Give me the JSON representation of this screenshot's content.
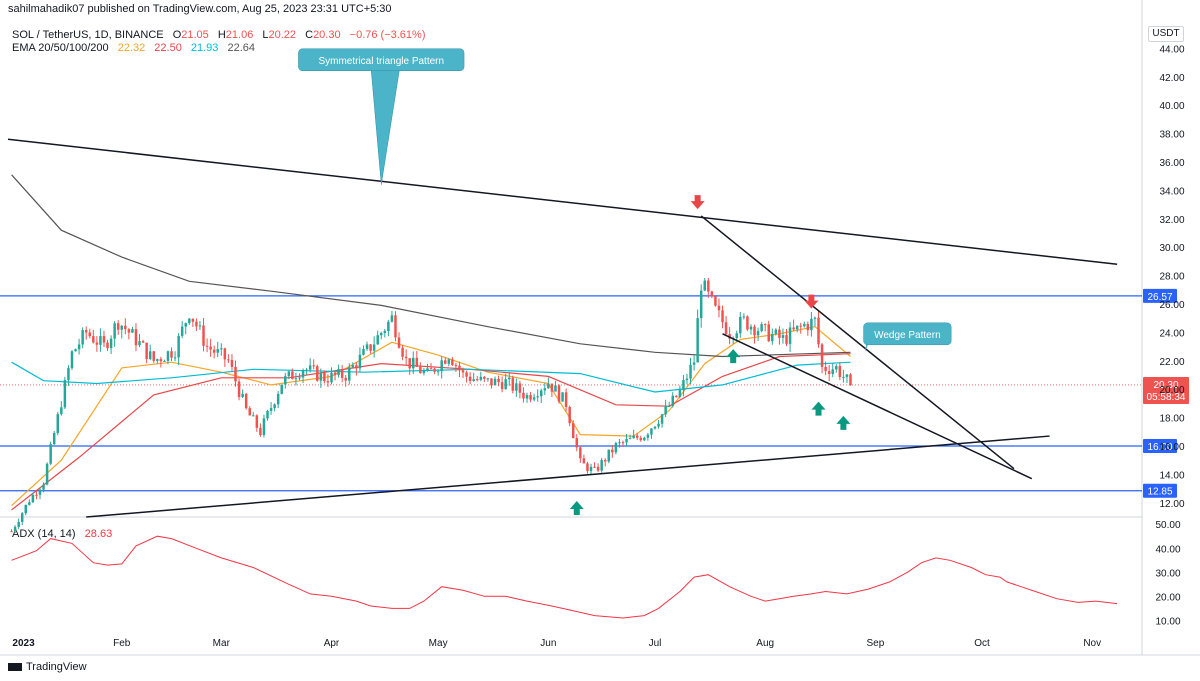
{
  "header": {
    "published": "sahilmahadik07 published on TradingView.com, Aug 25, 2023 23:31 UTC+5:30",
    "symbol": "SOL / TetherUS, 1D, BINANCE",
    "open_label": "O",
    "open": "21.05",
    "high_label": "H",
    "high": "21.06",
    "low_label": "L",
    "low": "20.22",
    "close_label": "C",
    "close": "20.30",
    "change": "−0.76 (−3.61%)",
    "ema_label": "EMA 20/50/100/200",
    "ema20": "22.32",
    "ema50": "22.50",
    "ema100": "21.93",
    "ema200": "22.64",
    "adx_label": "ADX (14, 14)",
    "adx_value": "28.63",
    "currency": "USDT"
  },
  "footer": {
    "brand": "TradingView"
  },
  "colors": {
    "up": "#26a69a",
    "down": "#ef5350",
    "ema20": "#f7a525",
    "ema50": "#e8474a",
    "ema100": "#00bcd4",
    "ema200": "#555555",
    "level": "#2962ff",
    "annotation": "#4bb4c9",
    "arrow_up": "#089981",
    "arrow_down": "#e8474a",
    "adx": "#f23645"
  },
  "chart_data": [
    {
      "type": "candlestick",
      "title": "SOL / TetherUS, 1D, BINANCE",
      "xlabel": "",
      "ylabel": "",
      "ylim": [
        11,
        46
      ],
      "y_ticks": [
        "12.00",
        "14.00",
        "16.00",
        "18.00",
        "20.00",
        "22.00",
        "24.00",
        "26.00",
        "28.00",
        "30.00",
        "32.00",
        "34.00",
        "36.00",
        "38.00",
        "40.00",
        "42.00",
        "44.00"
      ],
      "x_ticks": [
        "2023",
        "Feb",
        "Mar",
        "Apr",
        "May",
        "Jun",
        "Jul",
        "Aug",
        "Sep",
        "Oct",
        "Nov"
      ],
      "x_start": "2022-12-31",
      "x_end": "2023-11-15",
      "horizontal_levels": [
        {
          "value": 26.57,
          "label": "26.57"
        },
        {
          "value": 16.0,
          "label": "16.00"
        },
        {
          "value": 12.85,
          "label": "12.85"
        }
      ],
      "last_price": {
        "value": 20.3,
        "label": "20.30",
        "countdown": "05:58:34"
      },
      "series": [
        {
          "name": "EMA 20",
          "key": "ema20",
          "points": [
            [
              "2023-01-01",
              11.8
            ],
            [
              "2023-01-15",
              15.0
            ],
            [
              "2023-02-01",
              21.5
            ],
            [
              "2023-02-15",
              21.9
            ],
            [
              "2023-03-01",
              21.2
            ],
            [
              "2023-03-15",
              20.3
            ],
            [
              "2023-04-01",
              20.9
            ],
            [
              "2023-04-18",
              23.3
            ],
            [
              "2023-05-01",
              22.4
            ],
            [
              "2023-05-15",
              21.2
            ],
            [
              "2023-06-01",
              20.4
            ],
            [
              "2023-06-10",
              16.8
            ],
            [
              "2023-06-25",
              16.7
            ],
            [
              "2023-07-05",
              18.5
            ],
            [
              "2023-07-15",
              21.8
            ],
            [
              "2023-07-25",
              23.5
            ],
            [
              "2023-08-05",
              23.9
            ],
            [
              "2023-08-15",
              24.4
            ],
            [
              "2023-08-25",
              22.3
            ]
          ]
        },
        {
          "name": "EMA 50",
          "key": "ema50",
          "points": [
            [
              "2023-01-01",
              11.5
            ],
            [
              "2023-01-20",
              15.2
            ],
            [
              "2023-02-10",
              19.6
            ],
            [
              "2023-03-01",
              20.8
            ],
            [
              "2023-03-20",
              20.8
            ],
            [
              "2023-04-15",
              21.8
            ],
            [
              "2023-05-10",
              21.4
            ],
            [
              "2023-06-01",
              20.9
            ],
            [
              "2023-06-20",
              18.9
            ],
            [
              "2023-07-05",
              18.8
            ],
            [
              "2023-07-20",
              20.9
            ],
            [
              "2023-08-05",
              22.3
            ],
            [
              "2023-08-25",
              22.5
            ]
          ]
        },
        {
          "name": "EMA 100",
          "key": "ema100",
          "points": [
            [
              "2023-01-01",
              21.9
            ],
            [
              "2023-01-10",
              20.6
            ],
            [
              "2023-01-25",
              20.4
            ],
            [
              "2023-02-15",
              20.8
            ],
            [
              "2023-03-10",
              21.4
            ],
            [
              "2023-04-10",
              21.2
            ],
            [
              "2023-05-10",
              21.4
            ],
            [
              "2023-06-10",
              21.1
            ],
            [
              "2023-07-01",
              19.8
            ],
            [
              "2023-07-20",
              20.3
            ],
            [
              "2023-08-10",
              21.7
            ],
            [
              "2023-08-25",
              21.9
            ]
          ]
        },
        {
          "name": "EMA 200",
          "key": "ema200",
          "points": [
            [
              "2023-01-01",
              35.1
            ],
            [
              "2023-01-15",
              31.2
            ],
            [
              "2023-02-01",
              29.3
            ],
            [
              "2023-02-20",
              27.6
            ],
            [
              "2023-03-15",
              26.9
            ],
            [
              "2023-04-15",
              25.9
            ],
            [
              "2023-05-15",
              24.4
            ],
            [
              "2023-06-10",
              23.2
            ],
            [
              "2023-07-01",
              22.6
            ],
            [
              "2023-07-20",
              22.3
            ],
            [
              "2023-08-25",
              22.6
            ]
          ]
        }
      ],
      "trendlines": [
        {
          "from": [
            "2022-12-31",
            37.6
          ],
          "to": [
            "2023-11-08",
            28.8
          ]
        },
        {
          "from": [
            "2023-01-22",
            11.0
          ],
          "to": [
            "2023-10-20",
            16.7
          ]
        },
        {
          "from": [
            "2023-07-14",
            32.2
          ],
          "to": [
            "2023-10-10",
            14.4
          ]
        },
        {
          "from": [
            "2023-07-20",
            23.9
          ],
          "to": [
            "2023-10-15",
            13.7
          ]
        }
      ],
      "annotations": [
        {
          "text": "Symmetrical triangle Pattern",
          "box_at": [
            "2023-04-15",
            43.2
          ],
          "pointer_to": [
            "2023-04-15",
            34.4
          ]
        },
        {
          "text": "Wedge Pattern",
          "box_at": [
            "2023-09-10",
            23.9
          ],
          "pointer_to": [
            "2023-08-29",
            22.6
          ]
        }
      ],
      "markers": [
        {
          "kind": "down",
          "at": [
            "2023-07-13",
            33.1
          ]
        },
        {
          "kind": "down",
          "at": [
            "2023-08-14",
            26.1
          ]
        },
        {
          "kind": "up",
          "at": [
            "2023-06-09",
            11.7
          ]
        },
        {
          "kind": "up",
          "at": [
            "2023-07-23",
            22.4
          ]
        },
        {
          "kind": "up",
          "at": [
            "2023-08-16",
            18.7
          ]
        },
        {
          "kind": "up",
          "at": [
            "2023-08-23",
            17.7
          ]
        }
      ],
      "price_path": [
        [
          "2023-01-01",
          10.0
        ],
        [
          "2023-01-06",
          12.2
        ],
        [
          "2023-01-10",
          13.5
        ],
        [
          "2023-01-14",
          18.0
        ],
        [
          "2023-01-18",
          22.5
        ],
        [
          "2023-01-22",
          24.0
        ],
        [
          "2023-01-27",
          23.0
        ],
        [
          "2023-01-31",
          24.8
        ],
        [
          "2023-02-05",
          23.5
        ],
        [
          "2023-02-10",
          22.0
        ],
        [
          "2023-02-16",
          22.8
        ],
        [
          "2023-02-20",
          25.5
        ],
        [
          "2023-02-25",
          23.0
        ],
        [
          "2023-03-03",
          22.0
        ],
        [
          "2023-03-08",
          18.5
        ],
        [
          "2023-03-12",
          17.0
        ],
        [
          "2023-03-18",
          20.5
        ],
        [
          "2023-03-24",
          21.5
        ],
        [
          "2023-03-30",
          20.8
        ],
        [
          "2023-04-05",
          21.0
        ],
        [
          "2023-04-12",
          23.0
        ],
        [
          "2023-04-18",
          25.0
        ],
        [
          "2023-04-22",
          22.0
        ],
        [
          "2023-04-28",
          21.0
        ],
        [
          "2023-05-04",
          22.5
        ],
        [
          "2023-05-08",
          21.0
        ],
        [
          "2023-05-14",
          20.5
        ],
        [
          "2023-05-20",
          20.5
        ],
        [
          "2023-05-26",
          19.5
        ],
        [
          "2023-06-01",
          20.5
        ],
        [
          "2023-06-06",
          19.0
        ],
        [
          "2023-06-10",
          14.8
        ],
        [
          "2023-06-14",
          14.2
        ],
        [
          "2023-06-20",
          16.0
        ],
        [
          "2023-06-28",
          16.8
        ],
        [
          "2023-07-04",
          18.5
        ],
        [
          "2023-07-08",
          19.8
        ],
        [
          "2023-07-12",
          22.0
        ],
        [
          "2023-07-14",
          27.5
        ],
        [
          "2023-07-18",
          25.5
        ],
        [
          "2023-07-22",
          24.0
        ],
        [
          "2023-07-26",
          24.8
        ],
        [
          "2023-08-01",
          24.0
        ],
        [
          "2023-08-06",
          23.5
        ],
        [
          "2023-08-12",
          24.5
        ],
        [
          "2023-08-15",
          24.8
        ],
        [
          "2023-08-17",
          21.5
        ],
        [
          "2023-08-21",
          21.5
        ],
        [
          "2023-08-25",
          20.3
        ]
      ]
    },
    {
      "type": "line",
      "title": "ADX (14, 14)",
      "xlabel": "",
      "ylabel": "",
      "ylim": [
        6,
        53
      ],
      "y_ticks": [
        "10.00",
        "20.00",
        "30.00",
        "40.00",
        "50.00"
      ],
      "series": [
        {
          "name": "ADX",
          "points": [
            [
              "2023-01-01",
              35
            ],
            [
              "2023-01-08",
              39
            ],
            [
              "2023-01-12",
              44
            ],
            [
              "2023-01-18",
              42
            ],
            [
              "2023-01-24",
              34
            ],
            [
              "2023-01-28",
              33
            ],
            [
              "2023-02-01",
              33.5
            ],
            [
              "2023-02-05",
              41
            ],
            [
              "2023-02-11",
              45
            ],
            [
              "2023-02-15",
              44
            ],
            [
              "2023-02-22",
              40
            ],
            [
              "2023-03-01",
              36
            ],
            [
              "2023-03-10",
              32
            ],
            [
              "2023-03-20",
              25
            ],
            [
              "2023-03-26",
              21
            ],
            [
              "2023-04-01",
              20
            ],
            [
              "2023-04-08",
              18
            ],
            [
              "2023-04-12",
              16
            ],
            [
              "2023-04-18",
              15
            ],
            [
              "2023-04-23",
              15
            ],
            [
              "2023-04-27",
              18
            ],
            [
              "2023-05-02",
              24
            ],
            [
              "2023-05-08",
              22.5
            ],
            [
              "2023-05-14",
              20
            ],
            [
              "2023-05-20",
              20
            ],
            [
              "2023-05-26",
              18
            ],
            [
              "2023-06-02",
              16
            ],
            [
              "2023-06-08",
              14
            ],
            [
              "2023-06-14",
              12
            ],
            [
              "2023-06-22",
              11
            ],
            [
              "2023-06-28",
              12
            ],
            [
              "2023-07-02",
              15
            ],
            [
              "2023-07-08",
              22
            ],
            [
              "2023-07-12",
              28
            ],
            [
              "2023-07-16",
              29
            ],
            [
              "2023-07-22",
              24
            ],
            [
              "2023-07-28",
              20
            ],
            [
              "2023-08-01",
              18
            ],
            [
              "2023-08-05",
              19
            ],
            [
              "2023-08-09",
              20
            ],
            [
              "2023-08-14",
              21
            ],
            [
              "2023-08-18",
              22
            ],
            [
              "2023-08-24",
              21
            ],
            [
              "2023-08-30",
              23
            ],
            [
              "2023-09-05",
              26
            ],
            [
              "2023-09-10",
              30
            ],
            [
              "2023-09-14",
              34
            ],
            [
              "2023-09-18",
              36
            ],
            [
              "2023-09-22",
              35
            ],
            [
              "2023-09-28",
              32
            ],
            [
              "2023-10-02",
              29
            ],
            [
              "2023-10-06",
              28
            ],
            [
              "2023-10-08",
              26
            ],
            [
              "2023-10-12",
              24
            ],
            [
              "2023-10-16",
              22
            ],
            [
              "2023-10-22",
              19
            ],
            [
              "2023-10-28",
              17.5
            ],
            [
              "2023-11-02",
              18
            ],
            [
              "2023-11-08",
              17
            ]
          ]
        }
      ],
      "last_value": 28.63
    }
  ]
}
